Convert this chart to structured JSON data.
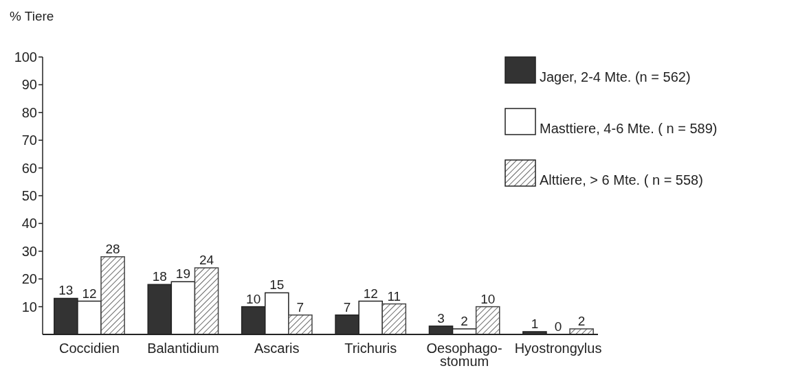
{
  "chart_data": {
    "type": "bar",
    "ylabel": "% Tiere",
    "categories": [
      "Coccidien",
      "Balantidium",
      "Ascaris",
      "Trichuris",
      "Oesophago-\nstomum",
      "Hyostrongylus"
    ],
    "series": [
      {
        "name": "Jager, 2-4 Mte. (n = 562)",
        "color": "#333333",
        "values": [
          13,
          18,
          10,
          7,
          3,
          1
        ]
      },
      {
        "name": "Masttiere, 4-6 Mte. ( n = 589)",
        "color": "#ffffff",
        "values": [
          12,
          19,
          15,
          12,
          2,
          0
        ]
      },
      {
        "name": "Alttiere, > 6 Mte. ( n = 558)",
        "color": "#444444",
        "values": [
          28,
          24,
          7,
          11,
          10,
          2
        ]
      }
    ],
    "ylim": [
      0,
      100
    ],
    "yticks": [
      10,
      20,
      30,
      40,
      50,
      60,
      70,
      80,
      90,
      100
    ],
    "data_labels": true,
    "legend": "top right",
    "grid": false
  }
}
